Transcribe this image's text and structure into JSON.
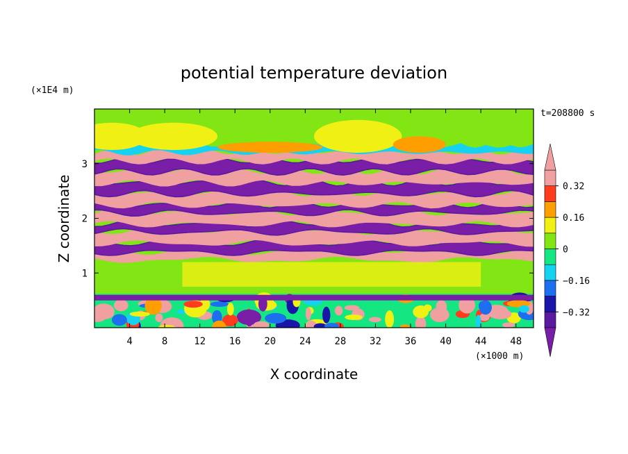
{
  "chart_data": {
    "type": "heatmap",
    "title": "potential temperature deviation",
    "xlabel": "X coordinate",
    "ylabel": "Z coordinate",
    "x_unit": "(×1000 m)",
    "y_unit": "(×1E4 m)",
    "time_label": "t=208800 s",
    "xlim": [
      0,
      50
    ],
    "ylim": [
      0,
      4
    ],
    "x_ticks": [
      4,
      8,
      12,
      16,
      20,
      24,
      28,
      32,
      36,
      40,
      44,
      48
    ],
    "y_ticks": [
      1,
      2,
      3
    ],
    "colorbar": {
      "levels": [
        -0.4,
        -0.32,
        -0.24,
        -0.16,
        -0.08,
        0,
        0.08,
        0.16,
        0.24,
        0.32,
        0.4
      ],
      "labels": [
        "0.32",
        "0.16",
        "0",
        "−0.16",
        "−0.32"
      ],
      "label_values": [
        0.32,
        0.16,
        0,
        -0.16,
        -0.32
      ],
      "colors": [
        "#7a1ea8",
        "#5a1aa0",
        "#1a14a8",
        "#1e6ef0",
        "#14d2f0",
        "#14e682",
        "#82e614",
        "#f0f014",
        "#ff9e00",
        "#ff3c1e",
        "#f0a0a0"
      ],
      "extend": "both"
    },
    "bands": [
      {
        "z0": 0.0,
        "z1": 0.62,
        "value": "mixed"
      },
      {
        "z0": 0.62,
        "z1": 1.25,
        "value": 0.05
      },
      {
        "z0": 1.25,
        "z1": 1.38,
        "value": 0.45
      },
      {
        "z0": 1.38,
        "z1": 1.55,
        "value": -0.45
      },
      {
        "z0": 1.55,
        "z1": 1.75,
        "value": 0.45
      },
      {
        "z0": 1.75,
        "z1": 1.9,
        "value": -0.45
      },
      {
        "z0": 1.9,
        "z1": 2.1,
        "value": 0.45
      },
      {
        "z0": 2.1,
        "z1": 2.25,
        "value": -0.45
      },
      {
        "z0": 2.25,
        "z1": 2.45,
        "value": 0.45
      },
      {
        "z0": 2.45,
        "z1": 2.65,
        "value": -0.45
      },
      {
        "z0": 2.65,
        "z1": 2.85,
        "value": 0.45
      },
      {
        "z0": 2.85,
        "z1": 3.05,
        "value": -0.45
      },
      {
        "z0": 3.05,
        "z1": 3.2,
        "value": 0.45
      },
      {
        "z0": 3.2,
        "z1": 3.35,
        "value": -0.1
      },
      {
        "z0": 3.35,
        "z1": 4.0,
        "value": 0.02
      }
    ]
  }
}
